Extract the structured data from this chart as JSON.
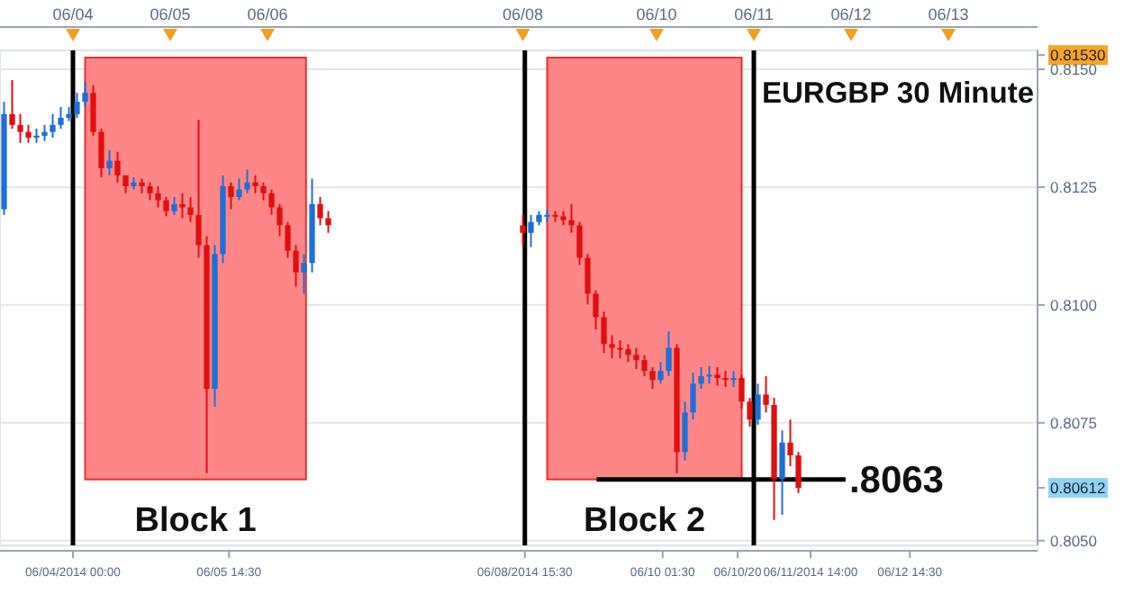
{
  "chart_data": {
    "type": "candlestick",
    "title": "EURGBP 30 Minute",
    "x": [
      "2014-06-03T07:00",
      "2014-06-03T09:00",
      "2014-06-03T11:00",
      "2014-06-03T13:00",
      "2014-06-03T15:00",
      "2014-06-03T17:00",
      "2014-06-03T19:00",
      "2014-06-03T21:00",
      "2014-06-03T23:00",
      "2014-06-04T01:00",
      "2014-06-04T03:00",
      "2014-06-04T05:00",
      "2014-06-04T07:00",
      "2014-06-04T09:00",
      "2014-06-04T11:00",
      "2014-06-04T13:00",
      "2014-06-04T15:00",
      "2014-06-04T17:00",
      "2014-06-04T19:00",
      "2014-06-04T21:00",
      "2014-06-04T23:00",
      "2014-06-05T01:00",
      "2014-06-05T03:00",
      "2014-06-05T05:00",
      "2014-06-05T07:00",
      "2014-06-05T09:00",
      "2014-06-05T11:00",
      "2014-06-05T13:00",
      "2014-06-05T15:00",
      "2014-06-05T17:00",
      "2014-06-05T19:00",
      "2014-06-05T21:00",
      "2014-06-05T23:00",
      "2014-06-06T01:00",
      "2014-06-06T03:00",
      "2014-06-06T05:00",
      "2014-06-06T07:00",
      "2014-06-06T09:00",
      "2014-06-06T11:00",
      "2014-06-06T13:00",
      "2014-06-06T15:00",
      "2014-06-08T15:00",
      "2014-06-08T17:00",
      "2014-06-08T19:00",
      "2014-06-08T21:00",
      "2014-06-08T23:00",
      "2014-06-09T01:00",
      "2014-06-09T03:00",
      "2014-06-09T05:00",
      "2014-06-09T07:00",
      "2014-06-09T09:00",
      "2014-06-09T11:00",
      "2014-06-09T13:00",
      "2014-06-09T15:00",
      "2014-06-09T17:00",
      "2014-06-09T19:00",
      "2014-06-09T21:00",
      "2014-06-09T23:00",
      "2014-06-10T01:00",
      "2014-06-10T03:00",
      "2014-06-10T05:00",
      "2014-06-10T07:00",
      "2014-06-10T09:00",
      "2014-06-10T11:00",
      "2014-06-10T13:00",
      "2014-06-10T15:00",
      "2014-06-10T17:00",
      "2014-06-10T19:00",
      "2014-06-10T21:00",
      "2014-06-10T23:00",
      "2014-06-11T01:00",
      "2014-06-11T03:00",
      "2014-06-11T05:00",
      "2014-06-11T07:00",
      "2014-06-11T09:00",
      "2014-06-11T11:00"
    ],
    "ohlc": [
      [
        0.81203,
        0.81431,
        0.81191,
        0.81405
      ],
      [
        0.81405,
        0.81477,
        0.81374,
        0.81382
      ],
      [
        0.81382,
        0.81405,
        0.81344,
        0.81367
      ],
      [
        0.81367,
        0.81382,
        0.81344,
        0.81355
      ],
      [
        0.81355,
        0.81374,
        0.81344,
        0.81359
      ],
      [
        0.81359,
        0.81382,
        0.81348,
        0.81367
      ],
      [
        0.81367,
        0.81405,
        0.81355,
        0.81382
      ],
      [
        0.81382,
        0.8142,
        0.81374,
        0.81397
      ],
      [
        0.81397,
        0.8142,
        0.8139,
        0.81405
      ],
      [
        0.81405,
        0.8145,
        0.81397,
        0.81431
      ],
      [
        0.81431,
        0.81473,
        0.8142,
        0.8145
      ],
      [
        0.8145,
        0.81466,
        0.81359,
        0.81367
      ],
      [
        0.81367,
        0.81374,
        0.81271,
        0.8129
      ],
      [
        0.8129,
        0.81329,
        0.81275,
        0.81306
      ],
      [
        0.81306,
        0.81325,
        0.8126,
        0.81275
      ],
      [
        0.81275,
        0.81275,
        0.81237,
        0.81252
      ],
      [
        0.81252,
        0.81271,
        0.81245,
        0.8126
      ],
      [
        0.8126,
        0.81268,
        0.81237,
        0.81252
      ],
      [
        0.81252,
        0.8126,
        0.81222,
        0.81237
      ],
      [
        0.81237,
        0.81252,
        0.81207,
        0.81222
      ],
      [
        0.81222,
        0.81229,
        0.81188,
        0.81199
      ],
      [
        0.81199,
        0.81229,
        0.81191,
        0.81214
      ],
      [
        0.81214,
        0.81237,
        0.81184,
        0.81207
      ],
      [
        0.81207,
        0.81229,
        0.81176,
        0.81191
      ],
      [
        0.81191,
        0.81393,
        0.811,
        0.81127
      ],
      [
        0.81127,
        0.81146,
        0.80643,
        0.80822
      ],
      [
        0.80822,
        0.81127,
        0.80784,
        0.81108
      ],
      [
        0.81108,
        0.81275,
        0.81089,
        0.81252
      ],
      [
        0.81252,
        0.8126,
        0.81203,
        0.81229
      ],
      [
        0.81229,
        0.81268,
        0.81222,
        0.81245
      ],
      [
        0.81245,
        0.81287,
        0.81237,
        0.8126
      ],
      [
        0.8126,
        0.81275,
        0.81237,
        0.81252
      ],
      [
        0.81252,
        0.8126,
        0.81222,
        0.81237
      ],
      [
        0.81237,
        0.81245,
        0.81191,
        0.81207
      ],
      [
        0.81207,
        0.81214,
        0.81146,
        0.81169
      ],
      [
        0.81169,
        0.81176,
        0.811,
        0.81115
      ],
      [
        0.81115,
        0.81127,
        0.81039,
        0.81069
      ],
      [
        0.81069,
        0.81108,
        0.81024,
        0.81089
      ],
      [
        0.81089,
        0.81268,
        0.81069,
        0.81214
      ],
      [
        0.81214,
        0.81229,
        0.81169,
        0.81184
      ],
      [
        0.81184,
        0.81199,
        0.81153,
        0.81169
      ],
      [
        0.81169,
        0.81191,
        0.81127,
        0.81153
      ],
      [
        0.81153,
        0.81191,
        0.81123,
        0.81176
      ],
      [
        0.81176,
        0.81199,
        0.81169,
        0.81191
      ],
      [
        0.81191,
        0.81203,
        0.81176,
        0.81191
      ],
      [
        0.81191,
        0.81199,
        0.81176,
        0.81188
      ],
      [
        0.81188,
        0.81199,
        0.81169,
        0.8118
      ],
      [
        0.8118,
        0.81214,
        0.81153,
        0.81169
      ],
      [
        0.81169,
        0.81176,
        0.81085,
        0.811
      ],
      [
        0.811,
        0.81108,
        0.81001,
        0.81024
      ],
      [
        0.81024,
        0.81031,
        0.80948,
        0.80974
      ],
      [
        0.80974,
        0.80986,
        0.80898,
        0.80917
      ],
      [
        0.80917,
        0.80936,
        0.80887,
        0.80909
      ],
      [
        0.80909,
        0.80925,
        0.80887,
        0.80906
      ],
      [
        0.80906,
        0.80917,
        0.80879,
        0.80894
      ],
      [
        0.80894,
        0.80909,
        0.80864,
        0.80883
      ],
      [
        0.80883,
        0.80894,
        0.80849,
        0.8086
      ],
      [
        0.8086,
        0.80868,
        0.80822,
        0.80841
      ],
      [
        0.80841,
        0.80879,
        0.80833,
        0.8086
      ],
      [
        0.8086,
        0.80944,
        0.80849,
        0.80909
      ],
      [
        0.80909,
        0.80917,
        0.80643,
        0.80688
      ],
      [
        0.80688,
        0.80795,
        0.8067,
        0.80772
      ],
      [
        0.80772,
        0.80856,
        0.80757,
        0.80833
      ],
      [
        0.80833,
        0.80868,
        0.80822,
        0.80849
      ],
      [
        0.80849,
        0.80871,
        0.80833,
        0.80852
      ],
      [
        0.80852,
        0.80868,
        0.80829,
        0.80845
      ],
      [
        0.80845,
        0.8086,
        0.80826,
        0.80841
      ],
      [
        0.80841,
        0.8086,
        0.80826,
        0.80845
      ],
      [
        0.80845,
        0.80852,
        0.8078,
        0.80795
      ],
      [
        0.80795,
        0.80803,
        0.80742,
        0.80757
      ],
      [
        0.80757,
        0.80833,
        0.80746,
        0.8081
      ],
      [
        0.8081,
        0.80849,
        0.80772,
        0.80788
      ],
      [
        0.80788,
        0.80803,
        0.80544,
        0.80631
      ],
      [
        0.80631,
        0.80734,
        0.80555,
        0.80708
      ],
      [
        0.80708,
        0.80757,
        0.80658,
        0.80681
      ],
      [
        0.80681,
        0.80688,
        0.80601,
        0.80612
      ]
    ],
    "xlim": [
      "2014-06-03T06:00",
      "2014-06-13T22:00"
    ],
    "xticks": [
      {
        "value": "2014-06-04T00:00",
        "label": "06/04/2014 00:00"
      },
      {
        "value": "2014-06-05T14:30",
        "label": "06/05 14:30"
      },
      {
        "value": "2014-06-08T15:30",
        "label": "06/08/2014 15:30"
      },
      {
        "value": "2014-06-10T01:30",
        "label": "06/10 01:30"
      },
      {
        "value": "2014-06-10T20:00",
        "label": "06/10/20"
      },
      {
        "value": "2014-06-11T14:00",
        "label": "06/11/2014 14:00"
      },
      {
        "value": "2014-06-12T14:30",
        "label": "06/12 14:30"
      }
    ],
    "x2lim": [
      "2014-06-03T06:00",
      "2014-06-13T22:00"
    ],
    "x2ticks": [
      {
        "value": "2014-06-04T00:00",
        "label": "06/04"
      },
      {
        "value": "2014-06-05T00:00",
        "label": "06/05"
      },
      {
        "value": "2014-06-06T00:00",
        "label": "06/06"
      },
      {
        "value": "2014-06-08T15:00",
        "label": "06/08"
      },
      {
        "value": "2014-06-10T00:00",
        "label": "06/10"
      },
      {
        "value": "2014-06-11T00:00",
        "label": "06/11"
      },
      {
        "value": "2014-06-12T00:00",
        "label": "06/12"
      },
      {
        "value": "2014-06-13T00:00",
        "label": "06/13"
      }
    ],
    "ylim": [
      0.8049,
      0.8154
    ],
    "yticks": [
      {
        "value": 0.805,
        "label": "0.8050"
      },
      {
        "value": 0.8075,
        "label": "0.8075"
      },
      {
        "value": 0.81,
        "label": "0.8100"
      },
      {
        "value": 0.8125,
        "label": "0.8125"
      },
      {
        "value": 0.815,
        "label": "0.8150"
      },
      {
        "value": 0.8153,
        "label": "0.81530"
      },
      {
        "value": 0.80612,
        "label": "0.80612"
      }
    ],
    "ref_lines": [
      {
        "axis": "x",
        "value": "2014-06-04T00:00",
        "color": "#000000"
      },
      {
        "axis": "x",
        "value": "2014-06-08T15:30",
        "color": "#000000"
      },
      {
        "axis": "x",
        "value": "2014-06-11T00:00",
        "color": "#000000"
      },
      {
        "axis": "y",
        "value": 0.8063,
        "label": ".8063",
        "color": "#000000"
      }
    ],
    "bands": [
      {
        "axis": "x",
        "from": "2014-06-04T03:00",
        "to": "2014-06-06T09:30",
        "label": "Block 1",
        "color": "#ff7f7f"
      },
      {
        "axis": "x",
        "from": "2014-06-08T21:00",
        "to": "2014-06-10T21:00",
        "label": "Block 2",
        "color": "#ff7f7f"
      }
    ],
    "grid": "y"
  }
}
